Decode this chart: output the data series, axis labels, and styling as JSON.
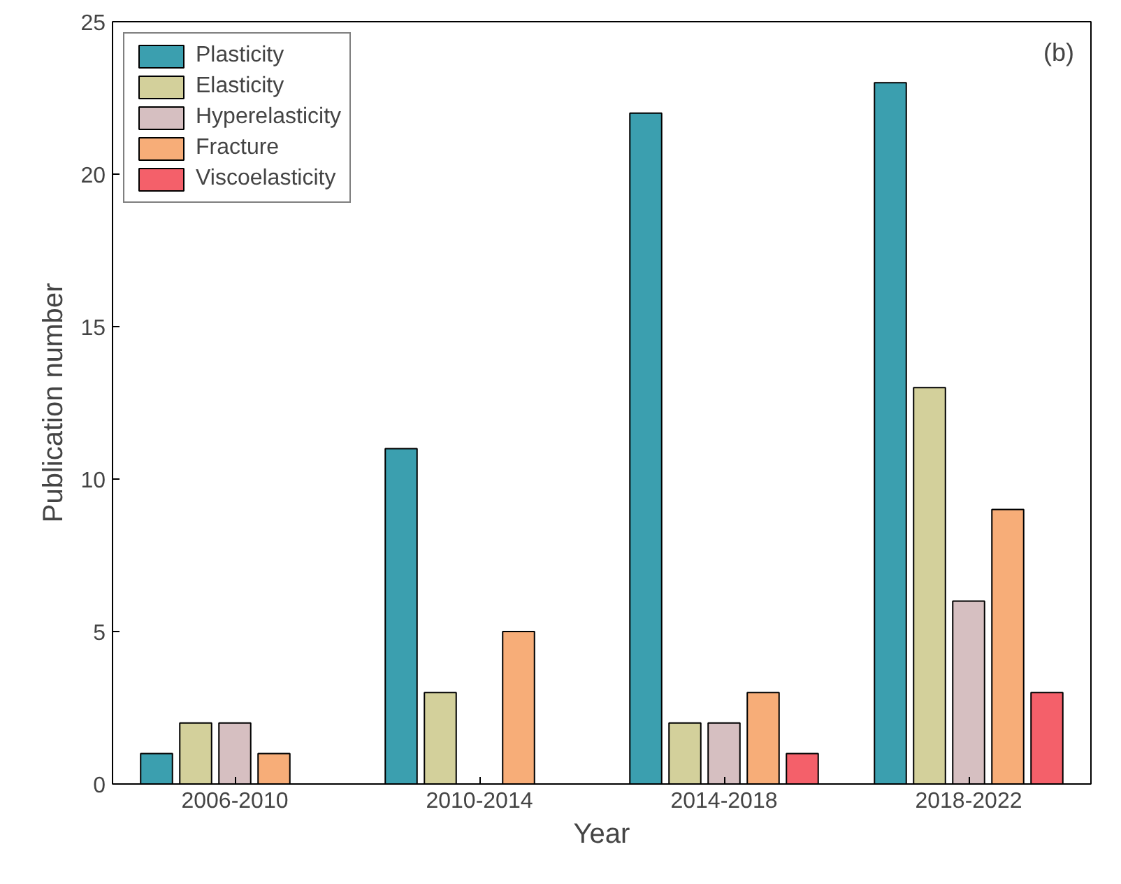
{
  "chart_data": {
    "type": "bar",
    "xlabel": "Year",
    "ylabel": "Publication number",
    "categories": [
      "2006-2010",
      "2010-2014",
      "2014-2018",
      "2018-2022"
    ],
    "series": [
      {
        "name": "Plasticity",
        "color": "#3b9faf",
        "values": [
          1,
          11,
          22,
          23
        ]
      },
      {
        "name": "Elasticity",
        "color": "#d3d09b",
        "values": [
          2,
          3,
          2,
          13
        ]
      },
      {
        "name": "Hyperelasticity",
        "color": "#d6bfc1",
        "values": [
          2,
          null,
          2,
          6
        ]
      },
      {
        "name": "Fracture",
        "color": "#f7ad78",
        "values": [
          1,
          5,
          3,
          9
        ]
      },
      {
        "name": "Viscoelasticity",
        "color": "#f4606a",
        "values": [
          null,
          null,
          1,
          3
        ]
      }
    ],
    "ylim": [
      0,
      25
    ],
    "yticks": [
      0,
      5,
      10,
      15,
      20,
      25
    ],
    "grid": false,
    "legend": "top left",
    "annotations": [
      "(b)"
    ]
  }
}
